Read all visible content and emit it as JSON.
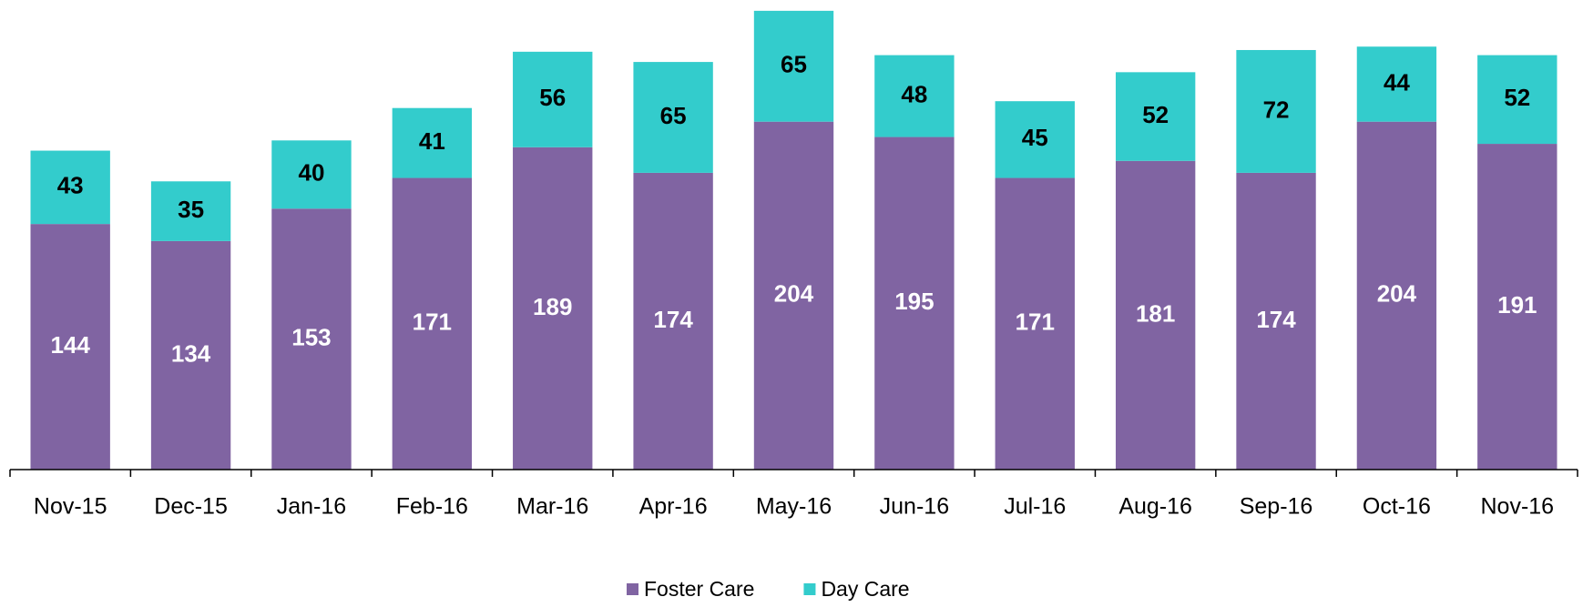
{
  "chart_data": {
    "type": "stacked-bar",
    "categories": [
      "Nov-15",
      "Dec-15",
      "Jan-16",
      "Feb-16",
      "Mar-16",
      "Apr-16",
      "May-16",
      "Jun-16",
      "Jul-16",
      "Aug-16",
      "Sep-16",
      "Oct-16",
      "Nov-16"
    ],
    "series": [
      {
        "name": "Foster Care",
        "color": "#8064a2",
        "values": [
          144,
          134,
          153,
          171,
          189,
          174,
          204,
          195,
          171,
          181,
          174,
          204,
          191
        ]
      },
      {
        "name": "Day Care",
        "color": "#33cccc",
        "values": [
          43,
          35,
          40,
          41,
          56,
          65,
          65,
          48,
          45,
          52,
          72,
          44,
          52
        ]
      }
    ],
    "ylim": [
      0,
      270
    ],
    "legend": "bottom"
  }
}
